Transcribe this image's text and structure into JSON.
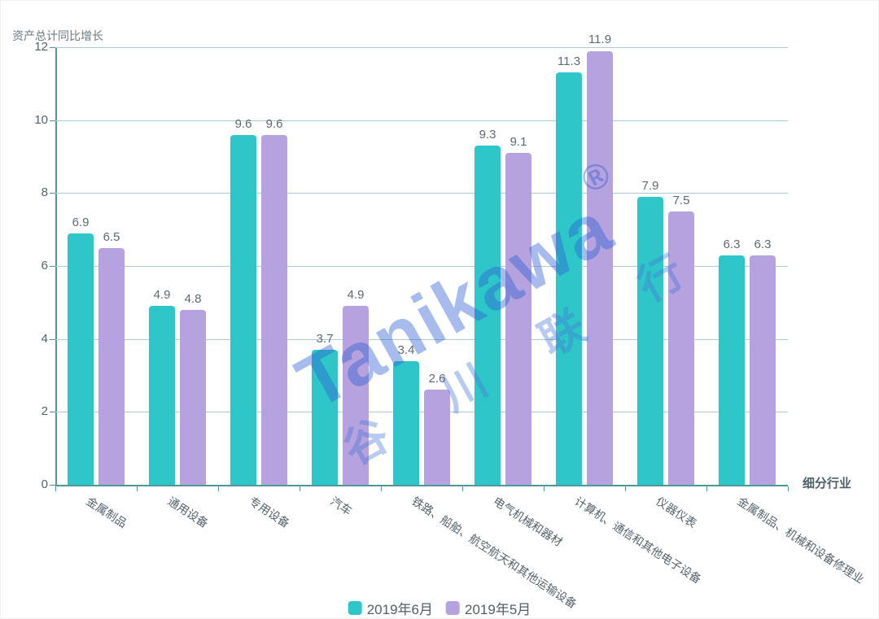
{
  "chart_data": {
    "type": "bar",
    "title": "",
    "ylabel": "资产总计同比增长",
    "xlabel": "细分行业",
    "ylim": [
      0,
      12
    ],
    "yticks": [
      0,
      2,
      4,
      6,
      8,
      10,
      12
    ],
    "grid": true,
    "legend_position": "bottom",
    "categories": [
      "金属制品",
      "通用设备",
      "专用设备",
      "汽车",
      "铁路、船舶、航空航天和其他运输设备",
      "电气机械和器材",
      "计算机、通信和其他电子设备",
      "仪器仪表",
      "金属制品、机械和设备修理业"
    ],
    "series": [
      {
        "name": "2019年6月",
        "color": "#2ec7c9",
        "values": [
          6.9,
          4.9,
          9.6,
          3.7,
          3.4,
          9.3,
          11.3,
          7.9,
          6.3
        ]
      },
      {
        "name": "2019年5月",
        "color": "#b6a2de",
        "values": [
          6.5,
          4.8,
          9.6,
          4.9,
          2.6,
          9.1,
          11.9,
          7.5,
          6.3
        ]
      }
    ]
  },
  "watermark": {
    "latin": "Tanikawa",
    "reg": "®",
    "cjk": "谷川联行"
  },
  "colors": {
    "axis": "#4e989c",
    "gridline": "#a9ccd6",
    "label_text": "#5d6a70",
    "series1": "#2ec7c9",
    "series2": "#b6a2de",
    "watermark_blue": "#2d5fd2"
  }
}
